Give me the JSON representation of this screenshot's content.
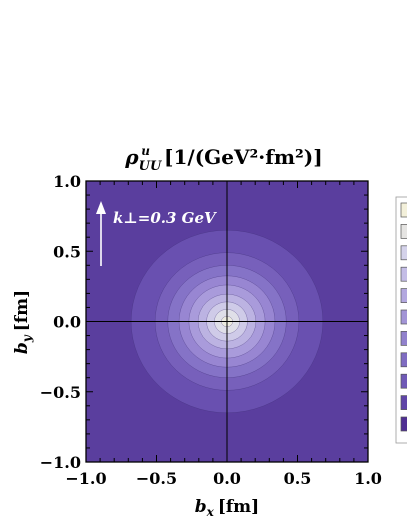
{
  "chart_data": {
    "type": "contour",
    "title": {
      "main": "ρ",
      "superscript": "u",
      "subscript": "UU",
      "units": "[1/(GeV²·fm²)]"
    },
    "xlabel": {
      "symbol": "b",
      "subscript": "x",
      "units": "[fm]"
    },
    "ylabel": {
      "symbol": "b",
      "subscript": "y",
      "units": "[fm]"
    },
    "xlim": [
      -1.0,
      1.0
    ],
    "ylim": [
      -1.0,
      1.0
    ],
    "xticks": [
      "−1.0",
      "−0.5",
      "0.0",
      "0.5",
      "1.0"
    ],
    "yticks": [
      "−1.0",
      "−0.5",
      "0.0",
      "0.5",
      "1.0"
    ],
    "annotation": {
      "text": "k⊥=0.3 GeV"
    },
    "center": [
      0.0,
      0.0
    ],
    "contour_levels": [
      {
        "radius_x": 0.68,
        "radius_y": 0.65,
        "color": "#6950b0"
      },
      {
        "radius_x": 0.51,
        "radius_y": 0.49,
        "color": "#7760bb"
      },
      {
        "radius_x": 0.42,
        "radius_y": 0.4,
        "color": "#8573c7"
      },
      {
        "radius_x": 0.34,
        "radius_y": 0.325,
        "color": "#9886d2"
      },
      {
        "radius_x": 0.27,
        "radius_y": 0.26,
        "color": "#a99bdb"
      },
      {
        "radius_x": 0.205,
        "radius_y": 0.195,
        "color": "#bcb3e2"
      },
      {
        "radius_x": 0.145,
        "radius_y": 0.14,
        "color": "#cfcbe8"
      },
      {
        "radius_x": 0.09,
        "radius_y": 0.087,
        "color": "#dfdfe8"
      },
      {
        "radius_x": 0.04,
        "radius_y": 0.038,
        "color": "#ecebdf"
      }
    ],
    "background_color": "#5a3e9e",
    "legend": {
      "placement": "right",
      "swatches": [
        "#f3f0da",
        "#e5e4e2",
        "#d4d2ea",
        "#c4bde6",
        "#b3a8df",
        "#a294d6",
        "#9181cc",
        "#7f6cc1",
        "#6f59b6",
        "#5f45a7",
        "#4f2f93"
      ]
    }
  }
}
